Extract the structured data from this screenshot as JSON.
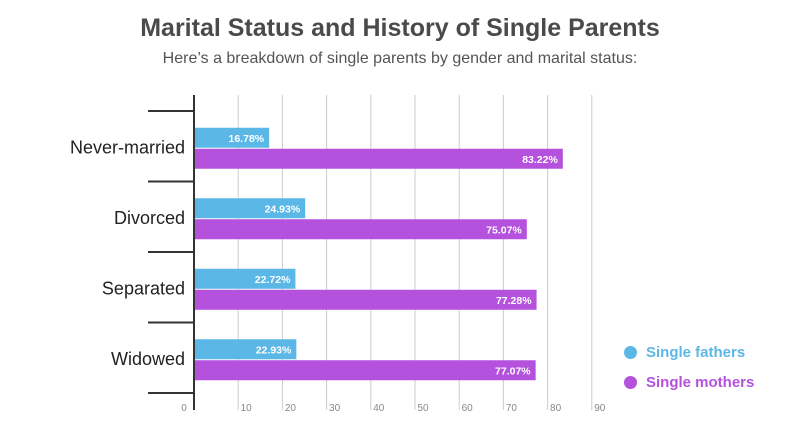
{
  "chart_data": {
    "type": "bar",
    "orientation": "horizontal",
    "title": "Marital Status and History of Single Parents",
    "subtitle": "Here’s a breakdown of single parents by gender and marital status:",
    "categories": [
      "Never-married",
      "Divorced",
      "Separated",
      "Widowed"
    ],
    "series": [
      {
        "name": "Single fathers",
        "color": "#5bb8e6",
        "values": [
          16.78,
          24.93,
          22.72,
          22.93
        ],
        "labels": [
          "16.78%",
          "24.93%",
          "22.72%",
          "22.93%"
        ]
      },
      {
        "name": "Single mothers",
        "color": "#b451dd",
        "values": [
          83.22,
          75.07,
          77.28,
          77.07
        ],
        "labels": [
          "83.22%",
          "75.07%",
          "77.28%",
          "77.07%"
        ]
      }
    ],
    "xticks": [
      "0",
      "10",
      "20",
      "30",
      "40",
      "50",
      "60",
      "70",
      "80",
      "90"
    ],
    "xlim": [
      0,
      90
    ],
    "grid": true,
    "legend_position": "bottom-right"
  },
  "colors": {
    "title": "#4a4a4a",
    "subtitle": "#555555",
    "axis": "#333333",
    "grid": "#cccccc",
    "tick_label": "#888888",
    "category_label": "#222222",
    "bar_label": "#ffffff"
  }
}
